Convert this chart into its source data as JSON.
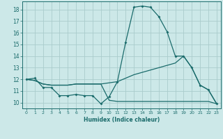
{
  "xlabel": "Humidex (Indice chaleur)",
  "bg_color": "#cce8e8",
  "grid_color": "#aacccc",
  "line_color": "#1a6b6b",
  "xlim": [
    -0.5,
    23.5
  ],
  "ylim": [
    9.5,
    18.7
  ],
  "xticks": [
    0,
    1,
    2,
    3,
    4,
    5,
    6,
    7,
    8,
    9,
    10,
    11,
    12,
    13,
    14,
    15,
    16,
    17,
    18,
    19,
    20,
    21,
    22,
    23
  ],
  "yticks": [
    10,
    11,
    12,
    13,
    14,
    15,
    16,
    17,
    18
  ],
  "series": [
    {
      "x": [
        0,
        1,
        2,
        3,
        4,
        5,
        6,
        7,
        8,
        9,
        10,
        11,
        12,
        13,
        14,
        15,
        16,
        17,
        18,
        19,
        20,
        21,
        22,
        23
      ],
      "y": [
        12.0,
        12.1,
        11.3,
        11.3,
        10.6,
        10.6,
        10.7,
        10.6,
        10.6,
        9.9,
        10.5,
        11.8,
        15.2,
        18.2,
        18.3,
        18.2,
        17.4,
        16.1,
        14.0,
        14.0,
        13.0,
        11.5,
        11.1,
        9.9
      ],
      "marker": true
    },
    {
      "x": [
        0,
        1,
        2,
        3,
        4,
        5,
        6,
        7,
        8,
        9,
        10,
        11,
        12,
        13,
        14,
        15,
        16,
        17,
        18,
        19,
        20,
        21,
        22,
        23
      ],
      "y": [
        12.0,
        11.9,
        11.6,
        11.5,
        11.5,
        11.5,
        11.6,
        11.6,
        11.6,
        11.6,
        11.7,
        11.8,
        12.1,
        12.4,
        12.6,
        12.8,
        13.0,
        13.2,
        13.4,
        14.0,
        13.0,
        11.5,
        11.1,
        9.9
      ],
      "marker": false
    },
    {
      "x": [
        0,
        1,
        2,
        3,
        4,
        5,
        6,
        7,
        8,
        9,
        10,
        11,
        12,
        13,
        14,
        15,
        16,
        17,
        18,
        19,
        20,
        21,
        22,
        23
      ],
      "y": [
        12.0,
        11.9,
        11.6,
        11.5,
        11.5,
        11.5,
        11.6,
        11.6,
        11.6,
        11.6,
        10.2,
        10.1,
        10.1,
        10.1,
        10.1,
        10.1,
        10.1,
        10.1,
        10.1,
        10.1,
        10.1,
        10.1,
        10.1,
        9.9
      ],
      "marker": false
    }
  ]
}
